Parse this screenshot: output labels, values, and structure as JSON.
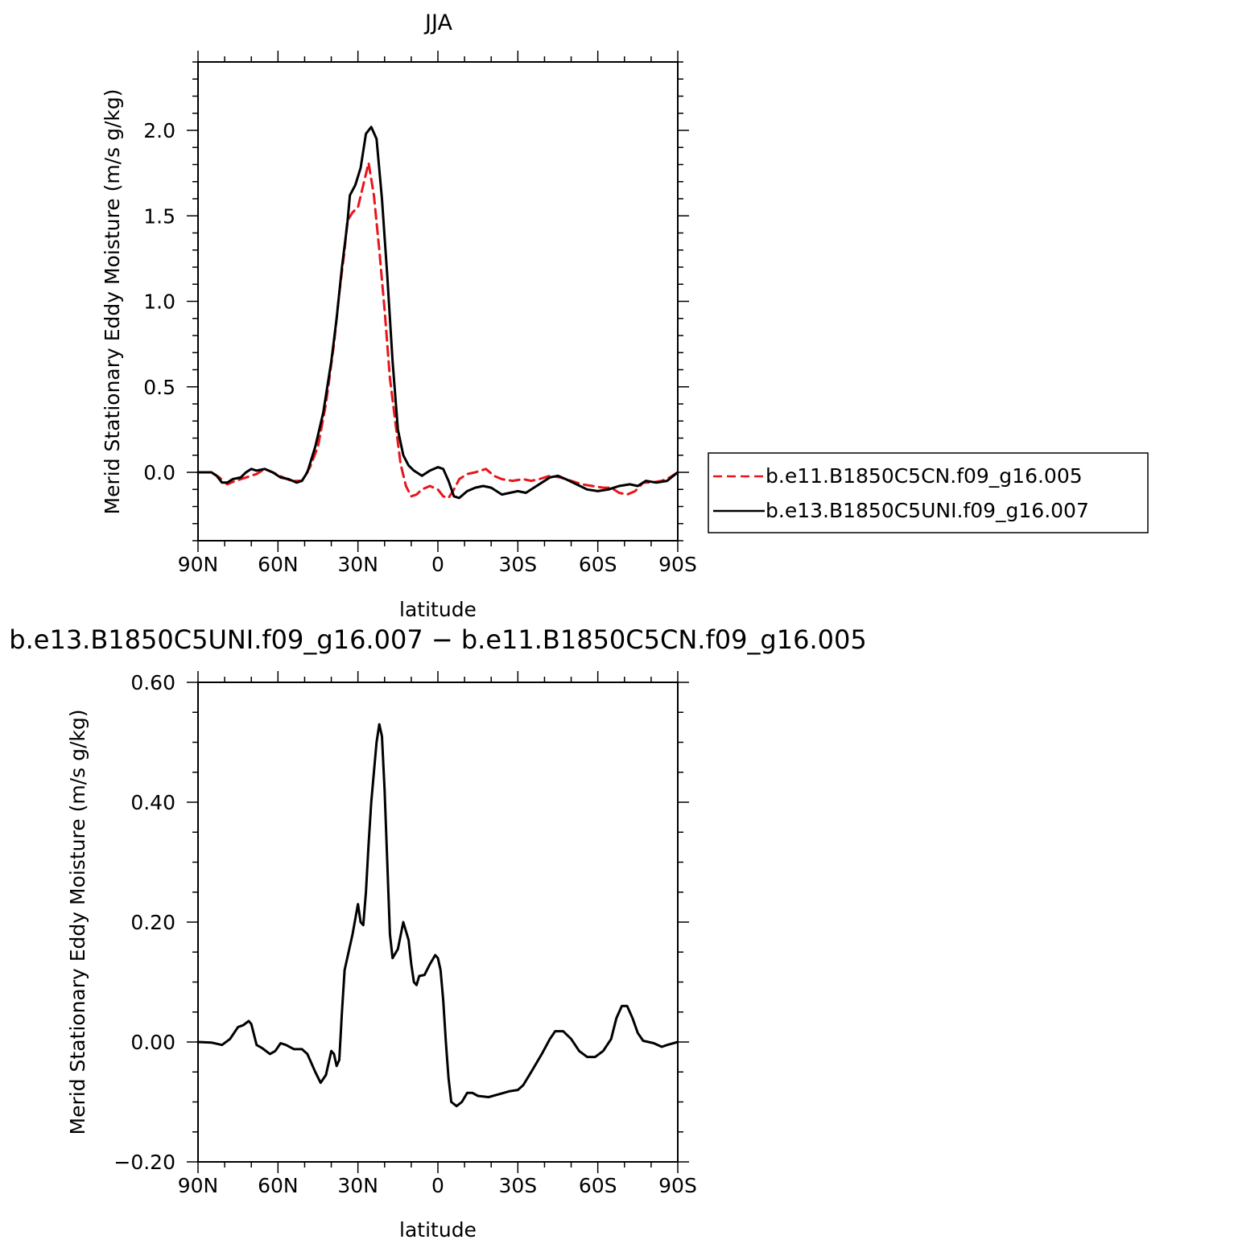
{
  "chart_data": [
    {
      "type": "line",
      "title": "JJA",
      "xlabel": "latitude",
      "ylabel": "Merid Stationary Eddy Moisture (m/s g/kg)",
      "xlim": [
        90,
        -90
      ],
      "ylim": [
        -0.4,
        2.4
      ],
      "xticks": [
        {
          "v": 90,
          "label": "90N"
        },
        {
          "v": 60,
          "label": "60N"
        },
        {
          "v": 30,
          "label": "30N"
        },
        {
          "v": 0,
          "label": "0"
        },
        {
          "v": -30,
          "label": "30S"
        },
        {
          "v": -60,
          "label": "60S"
        },
        {
          "v": -90,
          "label": "90S"
        }
      ],
      "yticks": [
        {
          "v": 0,
          "label": "0.0"
        },
        {
          "v": 0.5,
          "label": "0.5"
        },
        {
          "v": 1.0,
          "label": "1.0"
        },
        {
          "v": 1.5,
          "label": "1.5"
        },
        {
          "v": 2.0,
          "label": "2.0"
        }
      ],
      "legend_position": "right",
      "series": [
        {
          "name": "b.e11.B1850C5CN.f09_g16.005",
          "color": "#e8151b",
          "style": "dashed",
          "points": [
            [
              90,
              0
            ],
            [
              85,
              0
            ],
            [
              82,
              -0.03
            ],
            [
              79,
              -0.07
            ],
            [
              76,
              -0.05
            ],
            [
              72,
              -0.03
            ],
            [
              68,
              -0.01
            ],
            [
              65,
              0.02
            ],
            [
              62,
              0.0
            ],
            [
              58,
              -0.03
            ],
            [
              55,
              -0.05
            ],
            [
              51,
              -0.05
            ],
            [
              48,
              0.03
            ],
            [
              45,
              0.15
            ],
            [
              42,
              0.4
            ],
            [
              39,
              0.75
            ],
            [
              37,
              1.05
            ],
            [
              35,
              1.3
            ],
            [
              34,
              1.47
            ],
            [
              32,
              1.52
            ],
            [
              30,
              1.55
            ],
            [
              28,
              1.68
            ],
            [
              26,
              1.81
            ],
            [
              24,
              1.62
            ],
            [
              22,
              1.3
            ],
            [
              20,
              0.95
            ],
            [
              18,
              0.55
            ],
            [
              16,
              0.3
            ],
            [
              14,
              0.05
            ],
            [
              12,
              -0.08
            ],
            [
              10,
              -0.14
            ],
            [
              8,
              -0.13
            ],
            [
              6,
              -0.1
            ],
            [
              3,
              -0.08
            ],
            [
              0,
              -0.1
            ],
            [
              -2,
              -0.14
            ],
            [
              -4,
              -0.15
            ],
            [
              -6,
              -0.1
            ],
            [
              -8,
              -0.04
            ],
            [
              -11,
              -0.01
            ],
            [
              -14,
              0.0
            ],
            [
              -18,
              0.02
            ],
            [
              -21,
              -0.02
            ],
            [
              -24,
              -0.04
            ],
            [
              -28,
              -0.05
            ],
            [
              -32,
              -0.04
            ],
            [
              -35,
              -0.05
            ],
            [
              -38,
              -0.04
            ],
            [
              -42,
              -0.02
            ],
            [
              -46,
              -0.03
            ],
            [
              -50,
              -0.05
            ],
            [
              -54,
              -0.07
            ],
            [
              -58,
              -0.08
            ],
            [
              -62,
              -0.09
            ],
            [
              -65,
              -0.09
            ],
            [
              -68,
              -0.12
            ],
            [
              -71,
              -0.13
            ],
            [
              -74,
              -0.11
            ],
            [
              -77,
              -0.06
            ],
            [
              -80,
              -0.06
            ],
            [
              -84,
              -0.05
            ],
            [
              -87,
              -0.03
            ],
            [
              -90,
              0.0
            ]
          ]
        },
        {
          "name": "b.e13.B1850C5UNI.f09_g16.007",
          "color": "#000000",
          "style": "solid",
          "points": [
            [
              90,
              0
            ],
            [
              85,
              0
            ],
            [
              83,
              -0.02
            ],
            [
              81,
              -0.06
            ],
            [
              79,
              -0.06
            ],
            [
              77,
              -0.04
            ],
            [
              74,
              -0.03
            ],
            [
              72,
              0.0
            ],
            [
              70,
              0.02
            ],
            [
              68,
              0.01
            ],
            [
              65,
              0.02
            ],
            [
              62,
              0.0
            ],
            [
              59,
              -0.03
            ],
            [
              56,
              -0.04
            ],
            [
              53,
              -0.06
            ],
            [
              51,
              -0.05
            ],
            [
              49,
              0.0
            ],
            [
              46,
              0.15
            ],
            [
              43,
              0.35
            ],
            [
              40,
              0.65
            ],
            [
              38,
              0.9
            ],
            [
              36,
              1.2
            ],
            [
              34,
              1.45
            ],
            [
              33,
              1.62
            ],
            [
              31,
              1.68
            ],
            [
              29,
              1.78
            ],
            [
              27,
              1.98
            ],
            [
              25,
              2.02
            ],
            [
              23,
              1.95
            ],
            [
              21,
              1.6
            ],
            [
              19,
              1.15
            ],
            [
              17,
              0.65
            ],
            [
              15,
              0.25
            ],
            [
              13,
              0.1
            ],
            [
              11,
              0.04
            ],
            [
              9,
              0.01
            ],
            [
              6,
              -0.02
            ],
            [
              3,
              0.01
            ],
            [
              0,
              0.03
            ],
            [
              -2,
              0.02
            ],
            [
              -4,
              -0.05
            ],
            [
              -6,
              -0.14
            ],
            [
              -8,
              -0.15
            ],
            [
              -11,
              -0.11
            ],
            [
              -14,
              -0.09
            ],
            [
              -17,
              -0.08
            ],
            [
              -20,
              -0.09
            ],
            [
              -24,
              -0.13
            ],
            [
              -27,
              -0.12
            ],
            [
              -30,
              -0.11
            ],
            [
              -33,
              -0.12
            ],
            [
              -36,
              -0.09
            ],
            [
              -39,
              -0.06
            ],
            [
              -42,
              -0.03
            ],
            [
              -45,
              -0.02
            ],
            [
              -48,
              -0.04
            ],
            [
              -52,
              -0.07
            ],
            [
              -56,
              -0.1
            ],
            [
              -60,
              -0.11
            ],
            [
              -64,
              -0.1
            ],
            [
              -68,
              -0.08
            ],
            [
              -72,
              -0.07
            ],
            [
              -75,
              -0.08
            ],
            [
              -78,
              -0.05
            ],
            [
              -82,
              -0.06
            ],
            [
              -86,
              -0.05
            ],
            [
              -90,
              0.0
            ]
          ]
        }
      ]
    },
    {
      "type": "line",
      "title": "b.e13.B1850C5UNI.f09_g16.007 − b.e11.B1850C5CN.f09_g16.005",
      "xlabel": "latitude",
      "ylabel": "Merid Stationary Eddy Moisture (m/s g/kg)",
      "xlim": [
        90,
        -90
      ],
      "ylim": [
        -0.2,
        0.6
      ],
      "xticks": [
        {
          "v": 90,
          "label": "90N"
        },
        {
          "v": 60,
          "label": "60N"
        },
        {
          "v": 30,
          "label": "30N"
        },
        {
          "v": 0,
          "label": "0"
        },
        {
          "v": -30,
          "label": "30S"
        },
        {
          "v": -60,
          "label": "60S"
        },
        {
          "v": -90,
          "label": "90S"
        }
      ],
      "yticks": [
        {
          "v": -0.2,
          "label": "−0.20"
        },
        {
          "v": 0,
          "label": "0.00"
        },
        {
          "v": 0.2,
          "label": "0.20"
        },
        {
          "v": 0.4,
          "label": "0.40"
        },
        {
          "v": 0.6,
          "label": "0.60"
        }
      ],
      "series": [
        {
          "color": "#000000",
          "style": "solid",
          "points": [
            [
              90,
              0
            ],
            [
              85,
              -0.001
            ],
            [
              81,
              -0.005
            ],
            [
              78,
              0.005
            ],
            [
              75,
              0.025
            ],
            [
              73,
              0.028
            ],
            [
              71,
              0.035
            ],
            [
              70,
              0.03
            ],
            [
              68,
              -0.005
            ],
            [
              66,
              -0.01
            ],
            [
              63,
              -0.02
            ],
            [
              61,
              -0.015
            ],
            [
              59,
              -0.002
            ],
            [
              57,
              -0.005
            ],
            [
              54,
              -0.012
            ],
            [
              51,
              -0.012
            ],
            [
              49,
              -0.02
            ],
            [
              46,
              -0.05
            ],
            [
              44,
              -0.068
            ],
            [
              42,
              -0.055
            ],
            [
              40,
              -0.015
            ],
            [
              39,
              -0.02
            ],
            [
              38,
              -0.04
            ],
            [
              37,
              -0.03
            ],
            [
              36,
              0.05
            ],
            [
              35,
              0.12
            ],
            [
              33,
              0.16
            ],
            [
              32,
              0.18
            ],
            [
              30,
              0.23
            ],
            [
              29,
              0.2
            ],
            [
              28,
              0.195
            ],
            [
              27,
              0.25
            ],
            [
              26,
              0.33
            ],
            [
              25,
              0.4
            ],
            [
              24,
              0.45
            ],
            [
              23,
              0.5
            ],
            [
              22,
              0.53
            ],
            [
              21,
              0.51
            ],
            [
              20,
              0.42
            ],
            [
              19,
              0.3
            ],
            [
              18,
              0.18
            ],
            [
              17,
              0.14
            ],
            [
              15,
              0.155
            ],
            [
              13,
              0.2
            ],
            [
              11,
              0.17
            ],
            [
              10,
              0.13
            ],
            [
              9,
              0.1
            ],
            [
              8,
              0.095
            ],
            [
              7,
              0.11
            ],
            [
              5,
              0.112
            ],
            [
              3,
              0.13
            ],
            [
              1,
              0.145
            ],
            [
              0,
              0.14
            ],
            [
              -1,
              0.12
            ],
            [
              -2,
              0.07
            ],
            [
              -3,
              0.0
            ],
            [
              -4,
              -0.06
            ],
            [
              -5,
              -0.1
            ],
            [
              -7,
              -0.107
            ],
            [
              -9,
              -0.1
            ],
            [
              -11,
              -0.085
            ],
            [
              -13,
              -0.085
            ],
            [
              -15,
              -0.09
            ],
            [
              -19,
              -0.092
            ],
            [
              -23,
              -0.087
            ],
            [
              -27,
              -0.082
            ],
            [
              -30,
              -0.08
            ],
            [
              -32,
              -0.072
            ],
            [
              -35,
              -0.05
            ],
            [
              -39,
              -0.02
            ],
            [
              -42,
              0.005
            ],
            [
              -44,
              0.018
            ],
            [
              -47,
              0.018
            ],
            [
              -50,
              0.005
            ],
            [
              -53,
              -0.015
            ],
            [
              -56,
              -0.025
            ],
            [
              -59,
              -0.025
            ],
            [
              -62,
              -0.015
            ],
            [
              -65,
              0.005
            ],
            [
              -67,
              0.04
            ],
            [
              -69,
              0.06
            ],
            [
              -71,
              0.06
            ],
            [
              -73,
              0.04
            ],
            [
              -75,
              0.015
            ],
            [
              -77,
              0.002
            ],
            [
              -81,
              -0.002
            ],
            [
              -84,
              -0.008
            ],
            [
              -86,
              -0.005
            ],
            [
              -90,
              0.0
            ]
          ]
        }
      ]
    }
  ]
}
